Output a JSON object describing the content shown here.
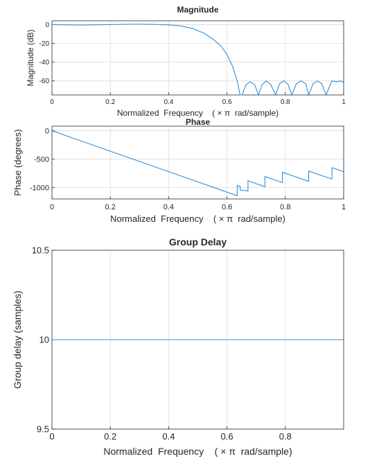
{
  "chart_data": [
    {
      "type": "line",
      "title": "Magnitude",
      "xlabel": "Normalized  Frequency    ( × π  rad/sample)",
      "ylabel": "Magnitude (dB)",
      "xlim": [
        0,
        1
      ],
      "ylim": [
        -75,
        4
      ],
      "xticks": [
        0,
        0.2,
        0.4,
        0.6,
        0.8,
        1
      ],
      "xtick_labels": [
        "0",
        "0.2",
        "0.4",
        "0.6",
        "0.8",
        "1"
      ],
      "yticks": [
        0,
        -20,
        -40,
        -60
      ],
      "ytick_labels": [
        "0",
        "-20",
        "-40",
        "-60"
      ],
      "grid": true,
      "series": [
        {
          "color": "#2e8fd8",
          "x": [
            0,
            0.05,
            0.1,
            0.15,
            0.2,
            0.25,
            0.3,
            0.35,
            0.4,
            0.44,
            0.48,
            0.52,
            0.55,
            0.58,
            0.6,
            0.62,
            0.635,
            0.645,
            0.652,
            0.665,
            0.68,
            0.695,
            0.708,
            0.72,
            0.735,
            0.75,
            0.767,
            0.78,
            0.795,
            0.81,
            0.822,
            0.838,
            0.854,
            0.87,
            0.88,
            0.895,
            0.91,
            0.925,
            0.94,
            0.955,
            0.96,
            0.975,
            0.99,
            1.0
          ],
          "y": [
            0,
            -0.3,
            -0.5,
            -0.3,
            0,
            0.3,
            0.4,
            0.2,
            -0.3,
            -1.5,
            -4,
            -9,
            -15,
            -23,
            -32,
            -45,
            -60,
            -75,
            -75,
            -64,
            -61,
            -64,
            -75,
            -64,
            -60,
            -64,
            -75,
            -63,
            -60,
            -64,
            -75,
            -63,
            -60,
            -63,
            -75,
            -63,
            -60,
            -63,
            -75,
            -63,
            -60,
            -61,
            -60,
            -62
          ]
        }
      ]
    },
    {
      "type": "line",
      "title": "Phase",
      "xlabel": "Normalized  Frequency    ( × π  rad/sample)",
      "ylabel": "Phase (degrees)",
      "xlim": [
        0,
        1
      ],
      "ylim": [
        -1200,
        80
      ],
      "xticks": [
        0,
        0.2,
        0.4,
        0.6,
        0.8,
        1
      ],
      "xtick_labels": [
        "0",
        "0.2",
        "0.4",
        "0.6",
        "0.8",
        "1"
      ],
      "yticks": [
        0,
        -500,
        -1000
      ],
      "ytick_labels": [
        "0",
        "-500",
        "-1000"
      ],
      "grid": true,
      "series": [
        {
          "color": "#2e8fd8",
          "x": [
            0,
            0.635,
            0.635,
            0.645,
            0.645,
            0.672,
            0.672,
            0.73,
            0.73,
            0.79,
            0.79,
            0.8,
            0.8,
            0.88,
            0.88,
            0.96,
            0.96,
            1.0
          ],
          "y": [
            0,
            -1143,
            -963,
            -980,
            -1040,
            -1060,
            -880,
            -985,
            -805,
            -910,
            -730,
            -748,
            -748,
            -890,
            -710,
            -850,
            -650,
            -720
          ]
        }
      ]
    },
    {
      "type": "line",
      "title": "Group Delay",
      "xlabel": "Normalized  Frequency    ( × π  rad/sample)",
      "ylabel": "Group delay (samples)",
      "xlim": [
        0,
        1
      ],
      "ylim": [
        9.5,
        10.5
      ],
      "xticks": [
        0,
        0.2,
        0.4,
        0.6,
        0.8
      ],
      "xtick_labels": [
        "0",
        "0.2",
        "0.4",
        "0.6",
        "0.8"
      ],
      "yticks": [
        9.5,
        10,
        10.5
      ],
      "ytick_labels": [
        "9.5",
        "10",
        "10.5"
      ],
      "grid": true,
      "series": [
        {
          "color": "#2e8fd8",
          "x": [
            0,
            1
          ],
          "y": [
            10,
            10
          ]
        }
      ]
    }
  ]
}
